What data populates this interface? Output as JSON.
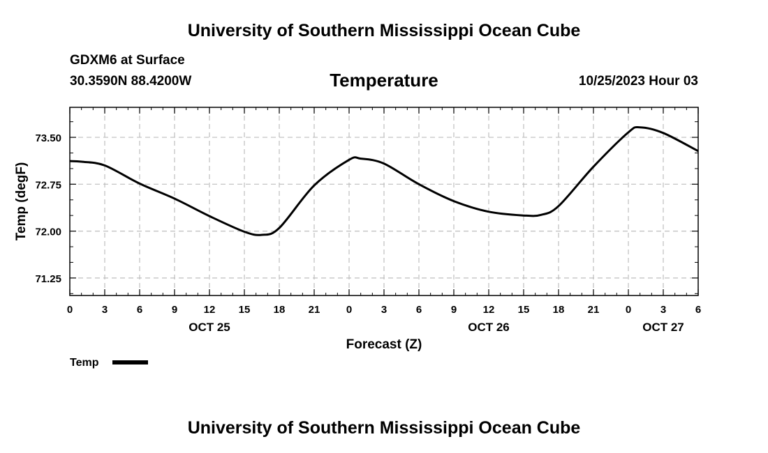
{
  "page": {
    "title_top": "University of Southern Mississippi Ocean Cube",
    "title_bottom": "University of Southern Mississippi Ocean Cube",
    "station": "GDXM6 at Surface",
    "coords": "30.3590N  88.4200W",
    "variable_title": "Temperature",
    "run_time": "10/25/2023 Hour 03"
  },
  "chart_data": {
    "type": "line",
    "title": "Temperature",
    "xlabel": "Forecast (Z)",
    "ylabel": "Temp (degF)",
    "x_unit": "hours since 2023-10-25 00Z",
    "x_range": [
      0,
      54
    ],
    "ylim": [
      70.97,
      73.98
    ],
    "y_ticks": [
      71.25,
      72.0,
      72.75,
      73.5
    ],
    "y_tick_labels": [
      "71.25",
      "72.00",
      "72.75",
      "73.50"
    ],
    "x_ticks": [
      0,
      3,
      6,
      9,
      12,
      15,
      18,
      21,
      24,
      27,
      30,
      33,
      36,
      39,
      42,
      45,
      48,
      51,
      54
    ],
    "x_tick_labels": [
      "0",
      "3",
      "6",
      "9",
      "12",
      "15",
      "18",
      "21",
      "0",
      "3",
      "6",
      "9",
      "12",
      "15",
      "18",
      "21",
      "0",
      "3",
      "6"
    ],
    "day_labels": [
      {
        "x": 12,
        "label": "OCT 25"
      },
      {
        "x": 36,
        "label": "OCT 26"
      },
      {
        "x": 51,
        "label": "OCT 27"
      }
    ],
    "grid": true,
    "legend": {
      "position": "bottom-left",
      "label": "Temp"
    },
    "series": [
      {
        "name": "Temp",
        "color": "#000000",
        "x": [
          0,
          1,
          3,
          6,
          9,
          12,
          15,
          16.5,
          18,
          21,
          24,
          25,
          27,
          30,
          33,
          36,
          39,
          40.5,
          42,
          45,
          48,
          49,
          51,
          54
        ],
        "y": [
          73.12,
          73.11,
          73.05,
          72.76,
          72.52,
          72.24,
          71.99,
          71.94,
          72.05,
          72.73,
          73.14,
          73.16,
          73.08,
          72.75,
          72.48,
          72.31,
          72.25,
          72.26,
          72.4,
          73.03,
          73.58,
          73.66,
          73.57,
          73.28
        ]
      }
    ]
  }
}
